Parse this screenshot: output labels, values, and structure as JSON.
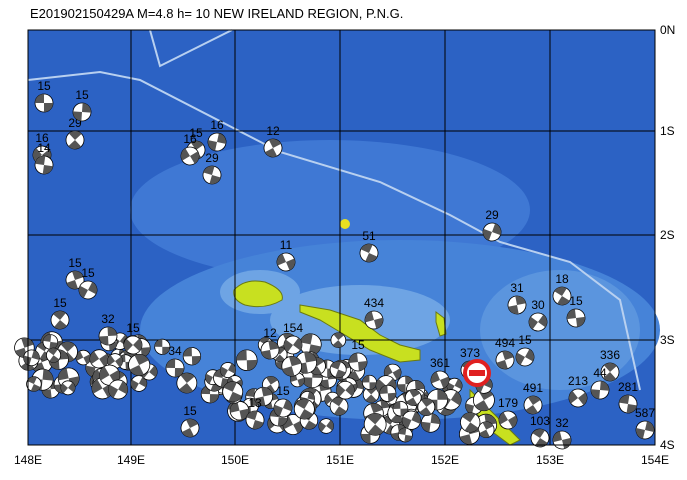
{
  "title": "E201902150429A M=4.8 h= 10 NEW IRELAND REGION, P.N.G.",
  "lat_labels": [
    "0N",
    "1S",
    "2S",
    "3S",
    "4S"
  ],
  "lon_labels": [
    "148E",
    "149E",
    "150E",
    "151E",
    "152E",
    "153E",
    "154E"
  ],
  "events": [
    {
      "depth": "15"
    },
    {
      "depth": "29"
    },
    {
      "depth": "15"
    },
    {
      "depth": "16"
    },
    {
      "depth": "14"
    },
    {
      "depth": "15"
    },
    {
      "depth": "16"
    },
    {
      "depth": "16"
    },
    {
      "depth": "29"
    },
    {
      "depth": "12"
    },
    {
      "depth": "29"
    },
    {
      "depth": "11"
    },
    {
      "depth": "51"
    },
    {
      "depth": "15"
    },
    {
      "depth": "15"
    },
    {
      "depth": "434"
    },
    {
      "depth": "18"
    },
    {
      "depth": "31"
    },
    {
      "depth": "30"
    },
    {
      "depth": "15"
    },
    {
      "depth": "15"
    },
    {
      "depth": "32"
    },
    {
      "depth": "15"
    },
    {
      "depth": "34"
    },
    {
      "depth": "336"
    },
    {
      "depth": "44"
    },
    {
      "depth": "213"
    },
    {
      "depth": "281"
    },
    {
      "depth": "491"
    },
    {
      "depth": "587"
    },
    {
      "depth": "179"
    },
    {
      "depth": "13"
    },
    {
      "depth": "15"
    },
    {
      "depth": "15"
    },
    {
      "depth": "361"
    },
    {
      "depth": "373"
    },
    {
      "depth": "494"
    },
    {
      "depth": "15"
    },
    {
      "depth": "32"
    },
    {
      "depth": "103"
    },
    {
      "depth": "12"
    },
    {
      "depth": "154"
    },
    {
      "depth": "15"
    }
  ]
}
